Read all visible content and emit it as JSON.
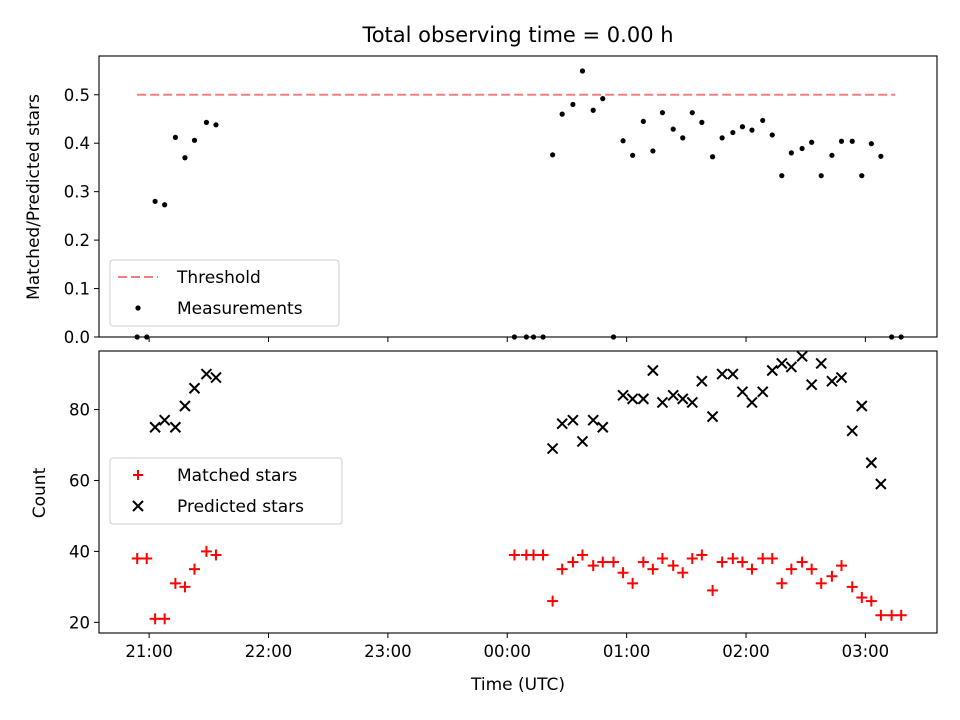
{
  "chart_data": [
    {
      "type": "scatter",
      "title": "Total observing time = 0.00 h",
      "ylabel": "Matched/Predicted stars",
      "xlim": [
        20.58,
        27.6
      ],
      "ylim": [
        0.0,
        0.58
      ],
      "yticks": [
        0.0,
        0.1,
        0.2,
        0.3,
        0.4,
        0.5
      ],
      "ytick_labels": [
        "0.0",
        "0.1",
        "0.2",
        "0.3",
        "0.4",
        "0.5"
      ],
      "grid": false,
      "legend_position": "lower-left",
      "series": [
        {
          "name": "Threshold",
          "style": "dashed-line",
          "color": "#f08080",
          "points": [
            [
              20.9,
              0.5
            ],
            [
              27.25,
              0.5
            ]
          ]
        },
        {
          "name": "Measurements",
          "style": "dot",
          "color": "#000000",
          "points": [
            [
              20.9,
              0.0
            ],
            [
              20.98,
              0.0
            ],
            [
              21.05,
              0.28
            ],
            [
              21.13,
              0.273
            ],
            [
              21.22,
              0.412
            ],
            [
              21.3,
              0.37
            ],
            [
              21.38,
              0.406
            ],
            [
              21.48,
              0.443
            ],
            [
              21.56,
              0.438
            ],
            [
              24.06,
              0.0
            ],
            [
              24.16,
              0.0
            ],
            [
              24.22,
              0.0
            ],
            [
              24.3,
              0.0
            ],
            [
              24.38,
              0.376
            ],
            [
              24.46,
              0.46
            ],
            [
              24.55,
              0.48
            ],
            [
              24.63,
              0.549
            ],
            [
              24.72,
              0.468
            ],
            [
              24.8,
              0.492
            ],
            [
              24.89,
              0.0
            ],
            [
              24.97,
              0.405
            ],
            [
              25.05,
              0.375
            ],
            [
              25.14,
              0.445
            ],
            [
              25.22,
              0.384
            ],
            [
              25.3,
              0.463
            ],
            [
              25.39,
              0.429
            ],
            [
              25.47,
              0.411
            ],
            [
              25.55,
              0.463
            ],
            [
              25.63,
              0.443
            ],
            [
              25.72,
              0.372
            ],
            [
              25.8,
              0.411
            ],
            [
              25.89,
              0.422
            ],
            [
              25.97,
              0.434
            ],
            [
              26.05,
              0.427
            ],
            [
              26.14,
              0.447
            ],
            [
              26.22,
              0.417
            ],
            [
              26.3,
              0.333
            ],
            [
              26.38,
              0.38
            ],
            [
              26.47,
              0.389
            ],
            [
              26.55,
              0.402
            ],
            [
              26.63,
              0.333
            ],
            [
              26.72,
              0.375
            ],
            [
              26.8,
              0.404
            ],
            [
              26.89,
              0.404
            ],
            [
              26.97,
              0.333
            ],
            [
              27.05,
              0.399
            ],
            [
              27.13,
              0.373
            ],
            [
              27.22,
              0.0
            ],
            [
              27.3,
              0.0
            ]
          ]
        }
      ]
    },
    {
      "type": "scatter",
      "xlabel": "Time (UTC)",
      "ylabel": "Count",
      "xlim": [
        20.58,
        27.6
      ],
      "ylim": [
        17,
        96.5
      ],
      "xticks": [
        21,
        22,
        23,
        24,
        25,
        26,
        27
      ],
      "xtick_labels": [
        "21:00",
        "22:00",
        "23:00",
        "00:00",
        "01:00",
        "02:00",
        "03:00"
      ],
      "yticks": [
        20,
        40,
        60,
        80
      ],
      "ytick_labels": [
        "20",
        "40",
        "60",
        "80"
      ],
      "grid": false,
      "legend_position": "center-left",
      "series": [
        {
          "name": "Matched stars",
          "marker": "plus",
          "color": "#ff0000",
          "points": [
            [
              20.9,
              38
            ],
            [
              20.98,
              38
            ],
            [
              21.05,
              21
            ],
            [
              21.13,
              21
            ],
            [
              21.22,
              31
            ],
            [
              21.3,
              30
            ],
            [
              21.38,
              35
            ],
            [
              21.48,
              40
            ],
            [
              21.56,
              39
            ],
            [
              24.06,
              39
            ],
            [
              24.16,
              39
            ],
            [
              24.22,
              39
            ],
            [
              24.3,
              39
            ],
            [
              24.38,
              26
            ],
            [
              24.46,
              35
            ],
            [
              24.55,
              37
            ],
            [
              24.63,
              39
            ],
            [
              24.72,
              36
            ],
            [
              24.8,
              37
            ],
            [
              24.89,
              37
            ],
            [
              24.97,
              34
            ],
            [
              25.05,
              31
            ],
            [
              25.14,
              37
            ],
            [
              25.22,
              35
            ],
            [
              25.3,
              38
            ],
            [
              25.39,
              36
            ],
            [
              25.47,
              34
            ],
            [
              25.55,
              38
            ],
            [
              25.63,
              39
            ],
            [
              25.72,
              29
            ],
            [
              25.8,
              37
            ],
            [
              25.89,
              38
            ],
            [
              25.97,
              37
            ],
            [
              26.05,
              35
            ],
            [
              26.14,
              38
            ],
            [
              26.22,
              38
            ],
            [
              26.3,
              31
            ],
            [
              26.38,
              35
            ],
            [
              26.47,
              37
            ],
            [
              26.55,
              35
            ],
            [
              26.63,
              31
            ],
            [
              26.72,
              33
            ],
            [
              26.8,
              36
            ],
            [
              26.89,
              30
            ],
            [
              26.97,
              27
            ],
            [
              27.05,
              26
            ],
            [
              27.13,
              22
            ],
            [
              27.22,
              22
            ],
            [
              27.3,
              22
            ]
          ]
        },
        {
          "name": "Predicted stars",
          "marker": "x",
          "color": "#000000",
          "points": [
            [
              21.05,
              75
            ],
            [
              21.13,
              77
            ],
            [
              21.22,
              75
            ],
            [
              21.3,
              81
            ],
            [
              21.38,
              86
            ],
            [
              21.48,
              90
            ],
            [
              21.56,
              89
            ],
            [
              24.38,
              69
            ],
            [
              24.46,
              76
            ],
            [
              24.55,
              77
            ],
            [
              24.63,
              71
            ],
            [
              24.72,
              77
            ],
            [
              24.8,
              75
            ],
            [
              24.97,
              84
            ],
            [
              25.05,
              83
            ],
            [
              25.14,
              83
            ],
            [
              25.22,
              91
            ],
            [
              25.3,
              82
            ],
            [
              25.39,
              84
            ],
            [
              25.47,
              83
            ],
            [
              25.55,
              82
            ],
            [
              25.63,
              88
            ],
            [
              25.72,
              78
            ],
            [
              25.8,
              90
            ],
            [
              25.89,
              90
            ],
            [
              25.97,
              85
            ],
            [
              26.05,
              82
            ],
            [
              26.14,
              85
            ],
            [
              26.22,
              91
            ],
            [
              26.3,
              93
            ],
            [
              26.38,
              92
            ],
            [
              26.47,
              95
            ],
            [
              26.55,
              87
            ],
            [
              26.63,
              93
            ],
            [
              26.72,
              88
            ],
            [
              26.8,
              89
            ],
            [
              26.89,
              74
            ],
            [
              26.97,
              81
            ],
            [
              27.05,
              65
            ],
            [
              27.13,
              59
            ]
          ]
        }
      ]
    }
  ]
}
